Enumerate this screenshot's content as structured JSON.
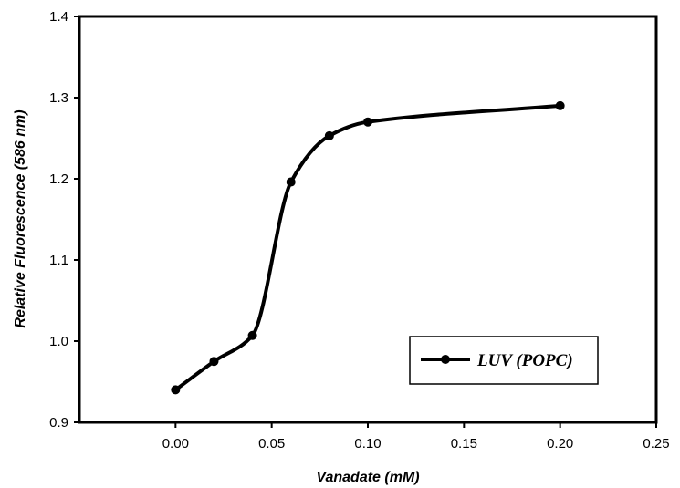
{
  "chart_data": {
    "type": "line",
    "title": "",
    "xlabel": "Vanadate (mM)",
    "ylabel": "Relative Fluorescence  (586 nm)",
    "xlim": [
      -0.05,
      0.25
    ],
    "ylim": [
      0.9,
      1.4
    ],
    "x_ticks": [
      0.0,
      0.05,
      0.1,
      0.15,
      0.2,
      0.25
    ],
    "x_tick_labels": [
      "0.00",
      "0.05",
      "0.10",
      "0.15",
      "0.20",
      "0.25"
    ],
    "y_ticks": [
      0.9,
      1.0,
      1.1,
      1.2,
      1.3,
      1.4
    ],
    "y_tick_labels": [
      "0.9",
      "1.0",
      "1.1",
      "1.2",
      "1.3",
      "1.4"
    ],
    "grid": false,
    "legend_position": "bottom-right",
    "series": [
      {
        "name": "LUV (POPC)",
        "color": "#000000",
        "marker": "circle",
        "smooth": true,
        "x": [
          0.0,
          0.02,
          0.04,
          0.06,
          0.08,
          0.1,
          0.2
        ],
        "y": [
          0.94,
          0.975,
          1.007,
          1.196,
          1.253,
          1.27,
          1.29
        ]
      }
    ]
  }
}
